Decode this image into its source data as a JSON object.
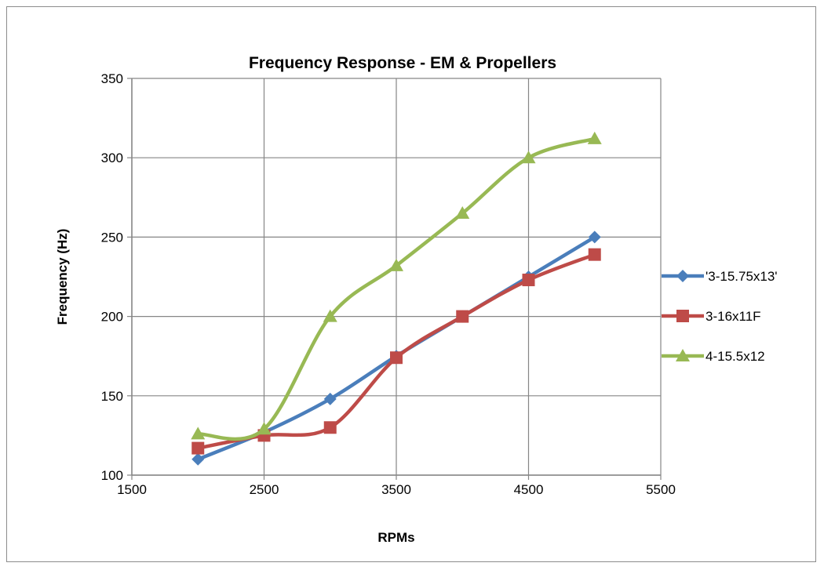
{
  "chart_data": {
    "type": "line",
    "title": "Frequency Response - EM & Propellers",
    "xlabel": "RPMs",
    "ylabel": "Frequency (Hz)",
    "xlim": [
      1500,
      5500
    ],
    "ylim": [
      100,
      350
    ],
    "xticks": [
      1500,
      2500,
      3500,
      4500,
      5500
    ],
    "yticks": [
      100,
      150,
      200,
      250,
      300,
      350
    ],
    "grid": true,
    "smooth": true,
    "legend_position": "right",
    "series": [
      {
        "name": "'3-15.75x13'",
        "color": "#4a7ebb",
        "marker": "diamond",
        "x": [
          2000,
          2500,
          3000,
          3500,
          4000,
          4500,
          5000
        ],
        "y": [
          110,
          127,
          148,
          175,
          200,
          225,
          250
        ]
      },
      {
        "name": "3-16x11F",
        "color": "#be4b48",
        "marker": "square",
        "x": [
          2000,
          2500,
          3000,
          3500,
          4000,
          4500,
          5000
        ],
        "y": [
          117,
          125,
          130,
          174,
          200,
          223,
          239
        ]
      },
      {
        "name": "4-15.5x12",
        "color": "#98b954",
        "marker": "triangle",
        "x": [
          2000,
          2500,
          3000,
          3500,
          4000,
          4500,
          5000
        ],
        "y": [
          126,
          129,
          200,
          232,
          265,
          300,
          312
        ]
      }
    ]
  }
}
